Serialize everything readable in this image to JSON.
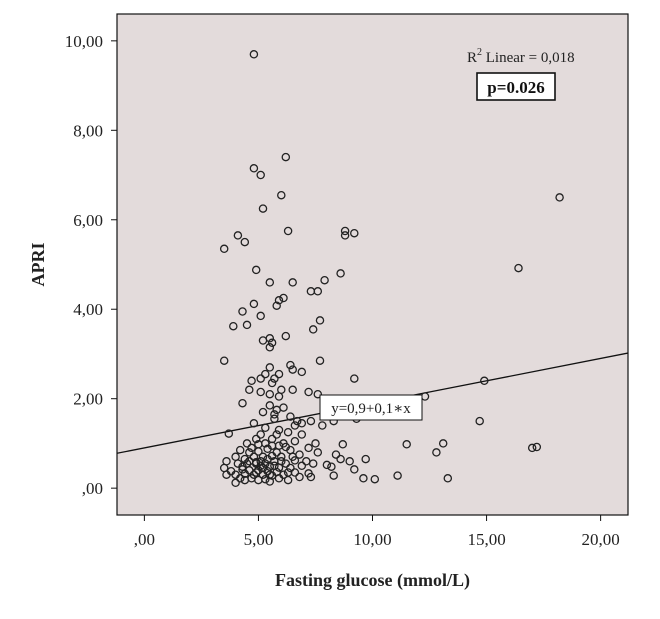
{
  "chart_data": {
    "type": "scatter",
    "title": "",
    "xlabel": "Fasting glucose (mmol/L)",
    "ylabel": "APRI",
    "xlim": [
      -1.2,
      21.2
    ],
    "ylim": [
      -0.6,
      10.6
    ],
    "x_ticks": [
      0,
      5,
      10,
      15,
      20
    ],
    "x_tick_labels": [
      ",00",
      "5,00",
      "10,00",
      "15,00",
      "20,00"
    ],
    "y_ticks": [
      0,
      2,
      4,
      6,
      8,
      10
    ],
    "y_tick_labels": [
      ",00",
      "2,00",
      "4,00",
      "6,00",
      "8,00",
      "10,00"
    ],
    "grid": false,
    "background": "#e3dbdb",
    "marker_color": "#222222",
    "fit_line": {
      "intercept": 0.9,
      "slope": 0.1,
      "label": "y=0,9+0,1∗x"
    },
    "r2_label": "R",
    "r2_sup": "2",
    "r2_text": " Linear = 0,018",
    "p_value_label": "p=0.026",
    "points": [
      [
        4.8,
        9.7
      ],
      [
        4.8,
        7.15
      ],
      [
        5.1,
        7.0
      ],
      [
        6.2,
        7.4
      ],
      [
        5.2,
        6.25
      ],
      [
        6.0,
        6.55
      ],
      [
        18.2,
        6.5
      ],
      [
        4.1,
        5.65
      ],
      [
        3.5,
        5.35
      ],
      [
        4.4,
        5.5
      ],
      [
        6.3,
        5.75
      ],
      [
        8.8,
        5.75
      ],
      [
        8.8,
        5.65
      ],
      [
        9.2,
        5.7
      ],
      [
        16.4,
        4.92
      ],
      [
        4.9,
        4.88
      ],
      [
        5.5,
        4.6
      ],
      [
        6.5,
        4.6
      ],
      [
        8.6,
        4.8
      ],
      [
        7.9,
        4.65
      ],
      [
        7.3,
        4.4
      ],
      [
        7.6,
        4.4
      ],
      [
        6.1,
        4.25
      ],
      [
        5.9,
        4.2
      ],
      [
        5.8,
        4.08
      ],
      [
        4.8,
        4.12
      ],
      [
        4.3,
        3.95
      ],
      [
        5.1,
        3.85
      ],
      [
        3.9,
        3.62
      ],
      [
        4.5,
        3.65
      ],
      [
        7.7,
        3.75
      ],
      [
        7.4,
        3.55
      ],
      [
        5.5,
        3.35
      ],
      [
        5.2,
        3.3
      ],
      [
        5.6,
        3.25
      ],
      [
        6.2,
        3.4
      ],
      [
        5.5,
        3.15
      ],
      [
        3.5,
        2.85
      ],
      [
        5.5,
        2.7
      ],
      [
        5.3,
        2.55
      ],
      [
        5.7,
        2.45
      ],
      [
        6.4,
        2.75
      ],
      [
        6.5,
        2.65
      ],
      [
        7.7,
        2.85
      ],
      [
        5.9,
        2.55
      ],
      [
        5.1,
        2.45
      ],
      [
        6.9,
        2.6
      ],
      [
        4.7,
        2.4
      ],
      [
        9.2,
        2.45
      ],
      [
        4.6,
        2.2
      ],
      [
        5.1,
        2.15
      ],
      [
        5.5,
        2.1
      ],
      [
        6.0,
        2.2
      ],
      [
        6.5,
        2.2
      ],
      [
        7.2,
        2.15
      ],
      [
        7.6,
        2.1
      ],
      [
        12.3,
        2.05
      ],
      [
        14.9,
        2.4
      ],
      [
        5.9,
        2.05
      ],
      [
        4.3,
        1.9
      ],
      [
        5.5,
        1.85
      ],
      [
        6.1,
        1.8
      ],
      [
        5.8,
        1.75
      ],
      [
        5.2,
        1.7
      ],
      [
        6.4,
        1.6
      ],
      [
        5.7,
        1.55
      ],
      [
        7.3,
        1.5
      ],
      [
        6.9,
        1.45
      ],
      [
        7.8,
        1.4
      ],
      [
        6.6,
        1.4
      ],
      [
        8.3,
        1.5
      ],
      [
        9.3,
        1.55
      ],
      [
        14.7,
        1.5
      ],
      [
        4.8,
        1.45
      ],
      [
        5.3,
        1.35
      ],
      [
        5.9,
        1.3
      ],
      [
        6.3,
        1.25
      ],
      [
        3.7,
        1.22
      ],
      [
        5.1,
        1.2
      ],
      [
        6.9,
        1.2
      ],
      [
        5.6,
        1.1
      ],
      [
        6.6,
        1.05
      ],
      [
        7.5,
        1.0
      ],
      [
        8.7,
        0.98
      ],
      [
        11.5,
        0.98
      ],
      [
        13.1,
        1.0
      ],
      [
        4.5,
        1.0
      ],
      [
        5.0,
        0.98
      ],
      [
        5.9,
        0.95
      ],
      [
        6.2,
        0.92
      ],
      [
        7.2,
        0.9
      ],
      [
        12.8,
        0.8
      ],
      [
        17.0,
        0.9
      ],
      [
        17.2,
        0.92
      ],
      [
        4.2,
        0.85
      ],
      [
        4.6,
        0.8
      ],
      [
        5.0,
        0.82
      ],
      [
        5.4,
        0.88
      ],
      [
        5.8,
        0.8
      ],
      [
        6.4,
        0.85
      ],
      [
        6.8,
        0.75
      ],
      [
        7.6,
        0.8
      ],
      [
        8.4,
        0.75
      ],
      [
        8.6,
        0.65
      ],
      [
        9.0,
        0.6
      ],
      [
        9.7,
        0.65
      ],
      [
        4.0,
        0.7
      ],
      [
        4.4,
        0.65
      ],
      [
        4.8,
        0.7
      ],
      [
        5.2,
        0.7
      ],
      [
        5.6,
        0.72
      ],
      [
        6.0,
        0.7
      ],
      [
        6.6,
        0.62
      ],
      [
        7.1,
        0.6
      ],
      [
        7.4,
        0.55
      ],
      [
        8.0,
        0.52
      ],
      [
        3.6,
        0.6
      ],
      [
        4.1,
        0.55
      ],
      [
        4.5,
        0.55
      ],
      [
        4.9,
        0.58
      ],
      [
        5.3,
        0.55
      ],
      [
        5.7,
        0.6
      ],
      [
        6.2,
        0.55
      ],
      [
        6.9,
        0.5
      ],
      [
        8.2,
        0.48
      ],
      [
        9.2,
        0.42
      ],
      [
        3.5,
        0.45
      ],
      [
        4.3,
        0.48
      ],
      [
        5.1,
        0.5
      ],
      [
        5.5,
        0.48
      ],
      [
        5.9,
        0.46
      ],
      [
        6.4,
        0.45
      ],
      [
        3.8,
        0.38
      ],
      [
        4.6,
        0.4
      ],
      [
        5.0,
        0.4
      ],
      [
        5.4,
        0.38
      ],
      [
        5.8,
        0.36
      ],
      [
        6.6,
        0.35
      ],
      [
        7.2,
        0.33
      ],
      [
        4.0,
        0.3
      ],
      [
        4.4,
        0.32
      ],
      [
        4.8,
        0.3
      ],
      [
        5.2,
        0.3
      ],
      [
        5.6,
        0.28
      ],
      [
        6.1,
        0.3
      ],
      [
        7.3,
        0.25
      ],
      [
        8.3,
        0.28
      ],
      [
        11.1,
        0.28
      ],
      [
        3.6,
        0.3
      ],
      [
        4.2,
        0.22
      ],
      [
        4.7,
        0.22
      ],
      [
        5.3,
        0.2
      ],
      [
        5.9,
        0.22
      ],
      [
        6.8,
        0.25
      ],
      [
        9.6,
        0.22
      ],
      [
        10.1,
        0.2
      ],
      [
        13.3,
        0.22
      ],
      [
        5.0,
        0.18
      ],
      [
        4.4,
        0.18
      ],
      [
        4.0,
        0.12
      ],
      [
        5.5,
        0.15
      ],
      [
        6.3,
        0.18
      ],
      [
        4.9,
        0.55
      ],
      [
        5.7,
        0.5
      ],
      [
        6.0,
        0.6
      ],
      [
        4.7,
        0.9
      ],
      [
        5.3,
        1.0
      ],
      [
        6.1,
        1.0
      ],
      [
        5.6,
        0.95
      ],
      [
        4.9,
        1.1
      ],
      [
        5.8,
        1.2
      ],
      [
        5.1,
        0.6
      ],
      [
        5.4,
        0.65
      ],
      [
        4.6,
        0.6
      ],
      [
        5.2,
        0.45
      ],
      [
        4.9,
        0.35
      ],
      [
        5.5,
        0.3
      ],
      [
        6.5,
        0.7
      ],
      [
        6.3,
        0.35
      ],
      [
        4.3,
        0.42
      ],
      [
        5.6,
        2.35
      ],
      [
        5.7,
        1.65
      ],
      [
        6.7,
        1.5
      ]
    ]
  }
}
